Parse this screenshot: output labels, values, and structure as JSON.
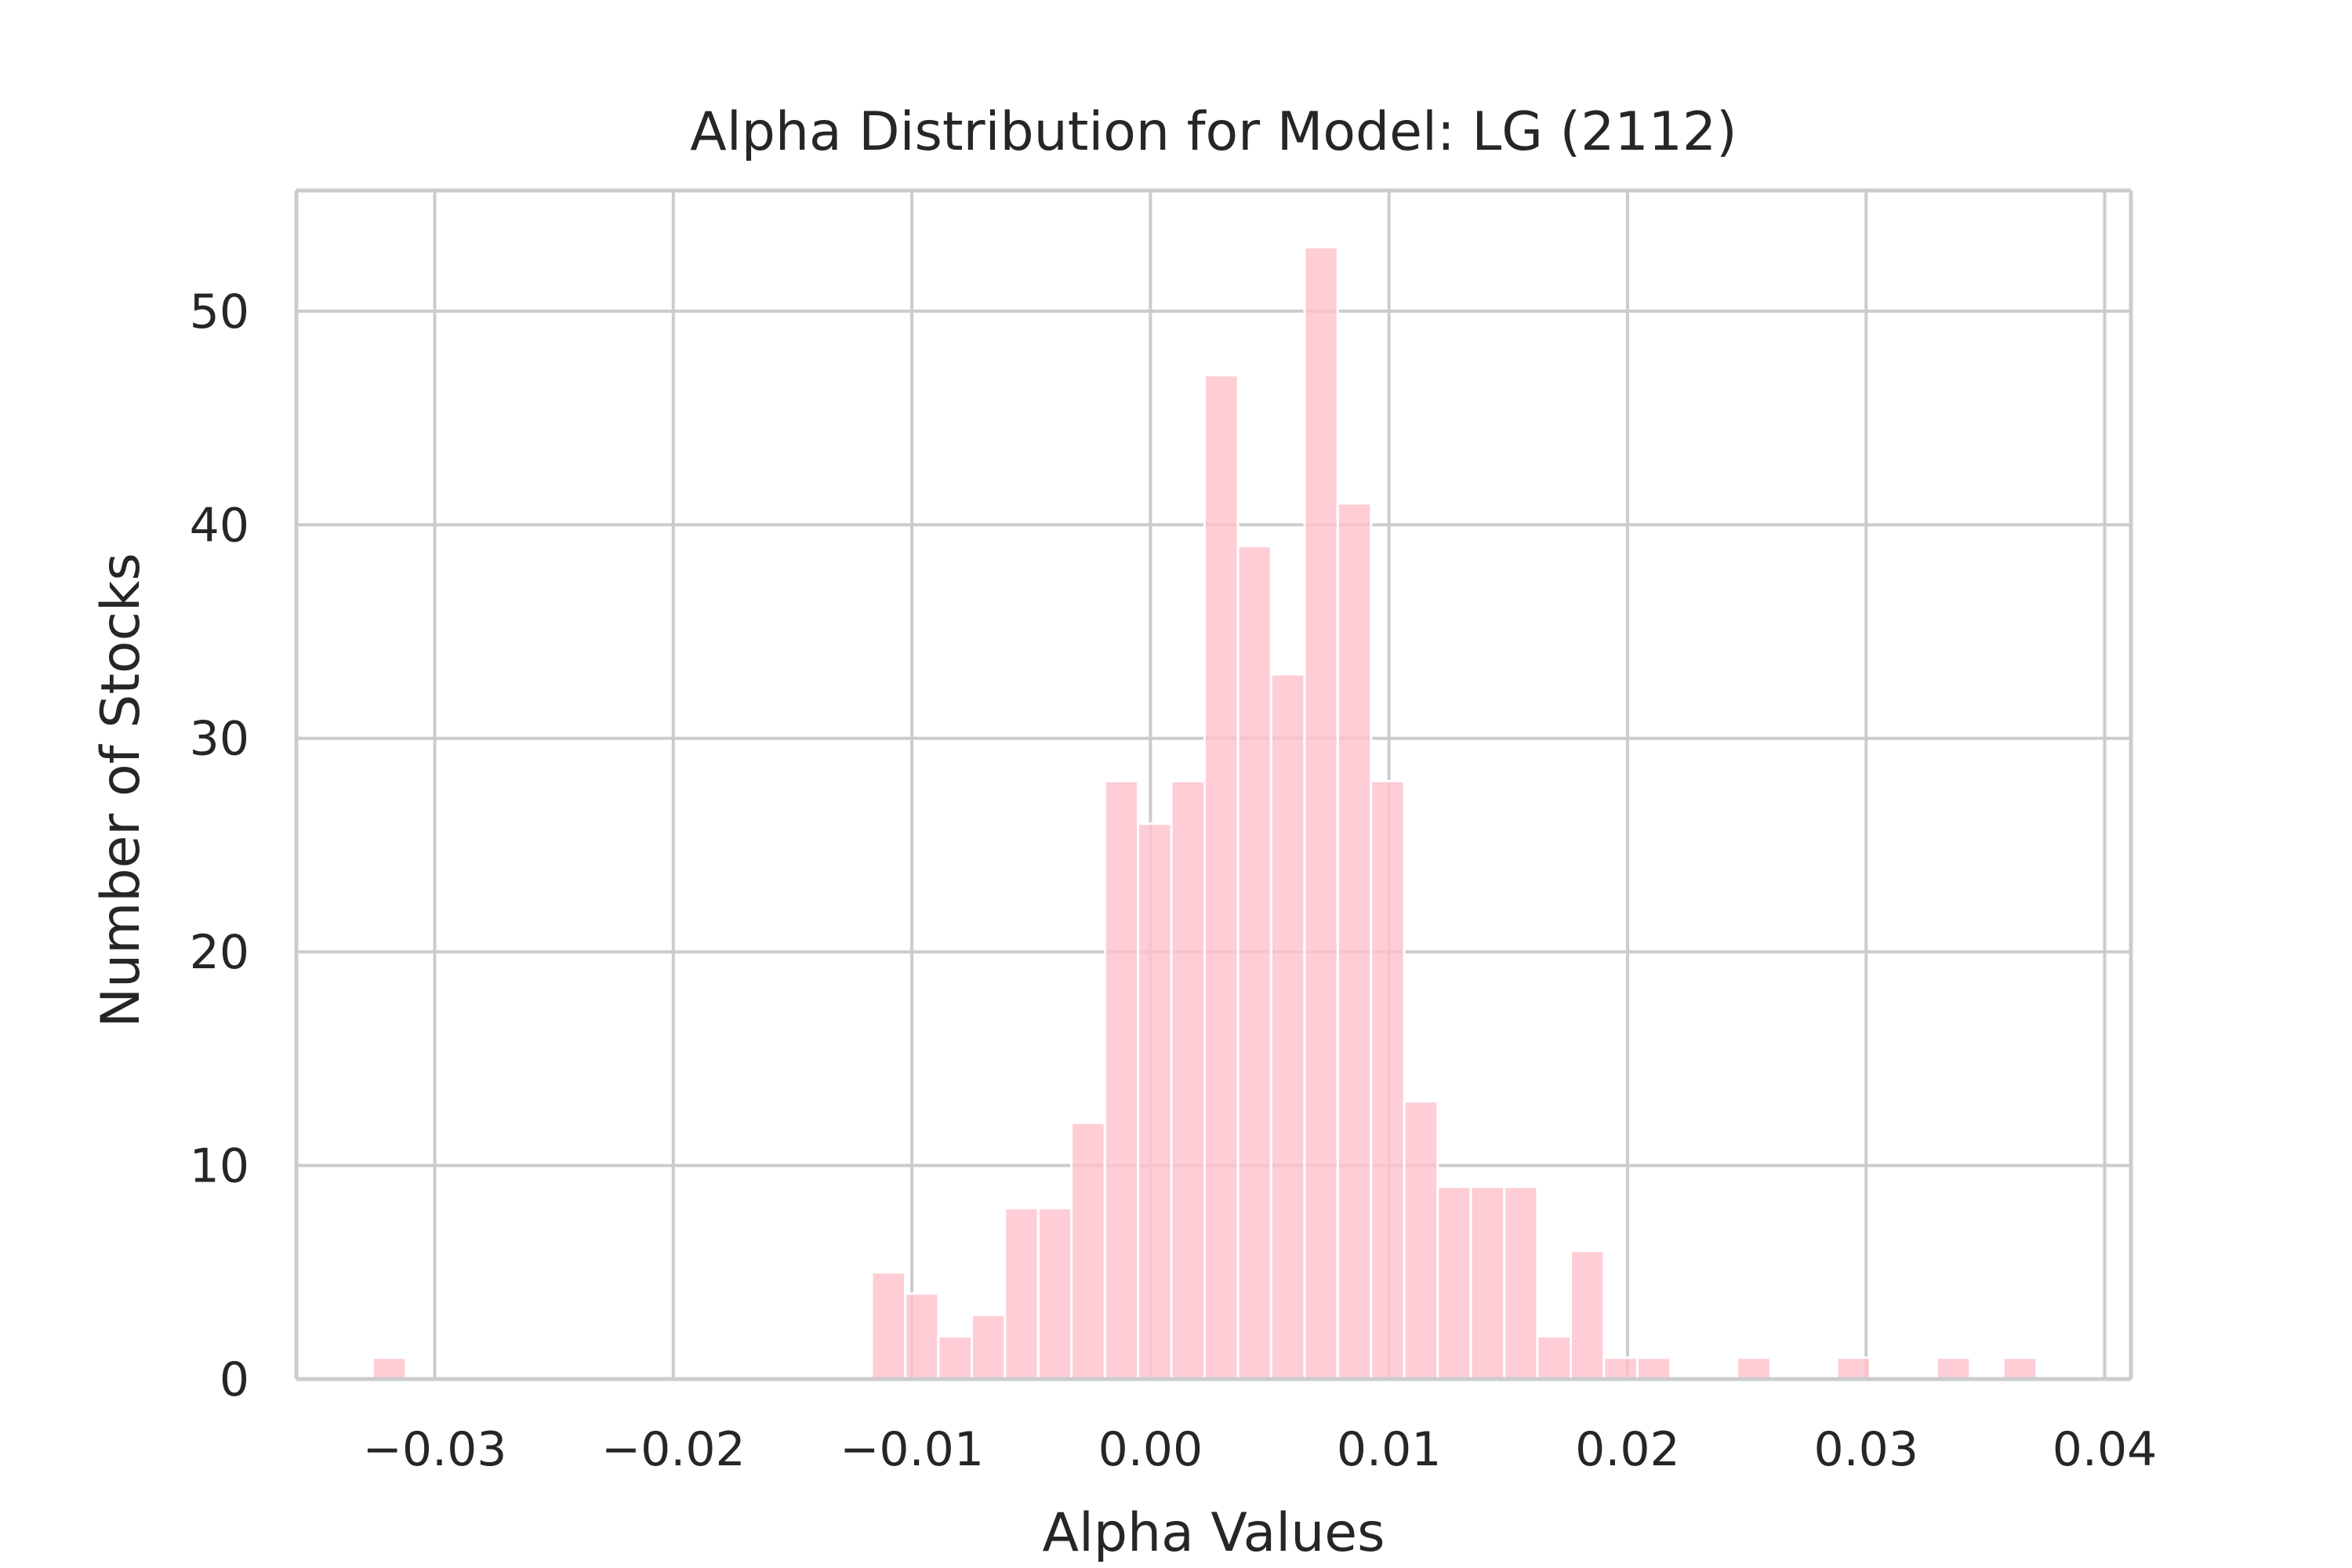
{
  "chart_data": {
    "type": "bar",
    "title": "Alpha Distribution for Model: LG (2112)",
    "xlabel": "Alpha Values",
    "ylabel": "Number of Stocks",
    "xlim": [
      -0.0358,
      0.0411
    ],
    "ylim": [
      0,
      55.65
    ],
    "xticks": [
      -0.03,
      -0.02,
      -0.01,
      0.0,
      0.01,
      0.02,
      0.03,
      0.04
    ],
    "xtick_labels": [
      "−0.03",
      "−0.02",
      "−0.01",
      "0.00",
      "0.01",
      "0.02",
      "0.03",
      "0.04"
    ],
    "yticks": [
      0,
      10,
      20,
      30,
      40,
      50
    ],
    "ytick_labels": [
      "0",
      "10",
      "20",
      "30",
      "40",
      "50"
    ],
    "grid": true,
    "bar_color": "#ffc0cb",
    "bar_opacity": 0.8,
    "bin_edges": [
      -0.0326,
      -0.03121,
      -0.02981,
      -0.02842,
      -0.02702,
      -0.02563,
      -0.02423,
      -0.02284,
      -0.02144,
      -0.02005,
      -0.01865,
      -0.01726,
      -0.01586,
      -0.01447,
      -0.01307,
      -0.01168,
      -0.01028,
      -0.00889,
      -0.00749,
      -0.0061,
      -0.0047,
      -0.00331,
      -0.00191,
      -0.00052,
      0.00088,
      0.00227,
      0.00367,
      0.00506,
      0.00646,
      0.00785,
      0.00925,
      0.01064,
      0.01204,
      0.01343,
      0.01483,
      0.01622,
      0.01762,
      0.01901,
      0.02041,
      0.0218,
      0.0232,
      0.02459,
      0.02599,
      0.02738,
      0.02878,
      0.03017,
      0.03157,
      0.03296,
      0.03436,
      0.03575,
      0.03715
    ],
    "counts": [
      1,
      0,
      0,
      0,
      0,
      0,
      0,
      0,
      0,
      0,
      0,
      0,
      0,
      0,
      0,
      5,
      4,
      2,
      3,
      8,
      8,
      12,
      28,
      26,
      28,
      47,
      39,
      33,
      53,
      41,
      28,
      13,
      9,
      9,
      9,
      2,
      6,
      1,
      1,
      0,
      0,
      1,
      0,
      0,
      1,
      0,
      0,
      1,
      0,
      1
    ]
  }
}
